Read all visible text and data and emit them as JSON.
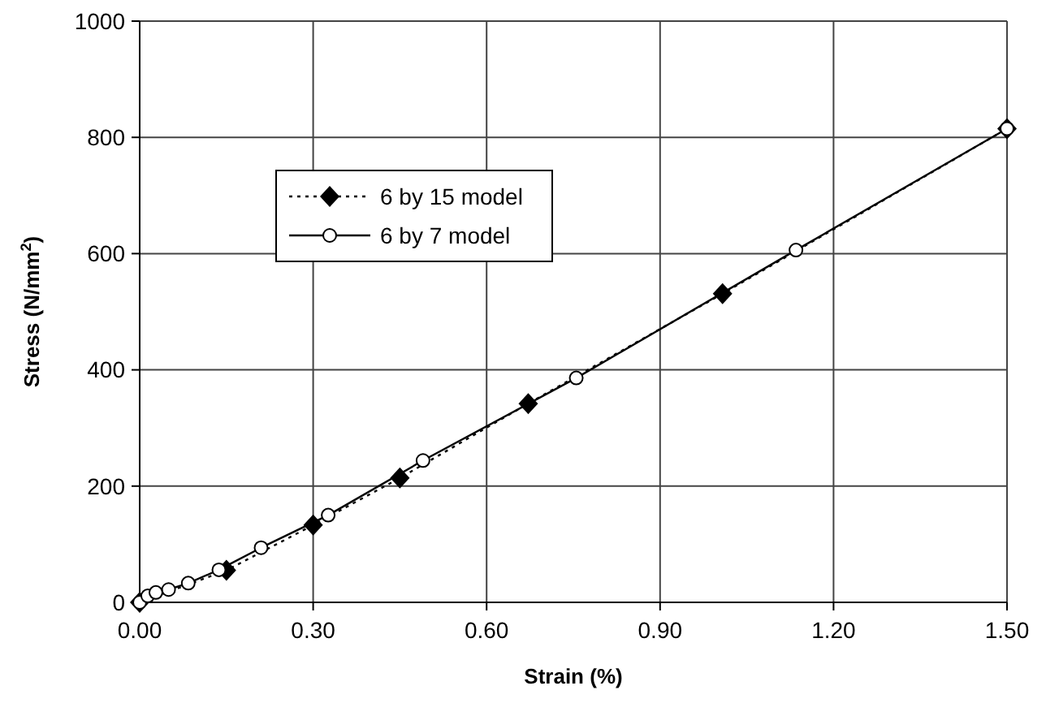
{
  "chart_data": {
    "type": "line",
    "xlabel": "Strain (%)",
    "ylabel": "Stress (N/mm$^{2}$)",
    "xlim": [
      0,
      1.5
    ],
    "ylim": [
      0,
      1000
    ],
    "xticks": [
      {
        "value": 0,
        "label": "0.00"
      },
      {
        "value": 0.3,
        "label": "0.30"
      },
      {
        "value": 0.6,
        "label": "0.60"
      },
      {
        "value": 0.9,
        "label": "0.90"
      },
      {
        "value": 1.2,
        "label": "1.20"
      },
      {
        "value": 1.5,
        "label": "1.50"
      }
    ],
    "yticks": [
      0,
      200,
      400,
      600,
      800,
      1000
    ],
    "grid": true,
    "legend": "top left",
    "series": [
      {
        "name": "6 by 15 model",
        "color": "#000000",
        "marker": "diamond",
        "line_style": "dotted",
        "x": [
          0,
          0.15,
          0.3,
          0.45,
          0.672,
          1.008,
          1.5
        ],
        "values": [
          0,
          55,
          133,
          214,
          342,
          531,
          815
        ]
      },
      {
        "name": "6 by 7 model",
        "color": "#000000",
        "marker": "circle",
        "line_style": "solid",
        "x": [
          0,
          0.014,
          0.028,
          0.05,
          0.084,
          0.137,
          0.21,
          0.326,
          0.49,
          0.755,
          1.135,
          1.5
        ],
        "values": [
          0,
          11,
          17,
          22,
          33,
          56,
          94,
          150,
          244,
          386,
          606,
          815
        ]
      }
    ]
  }
}
